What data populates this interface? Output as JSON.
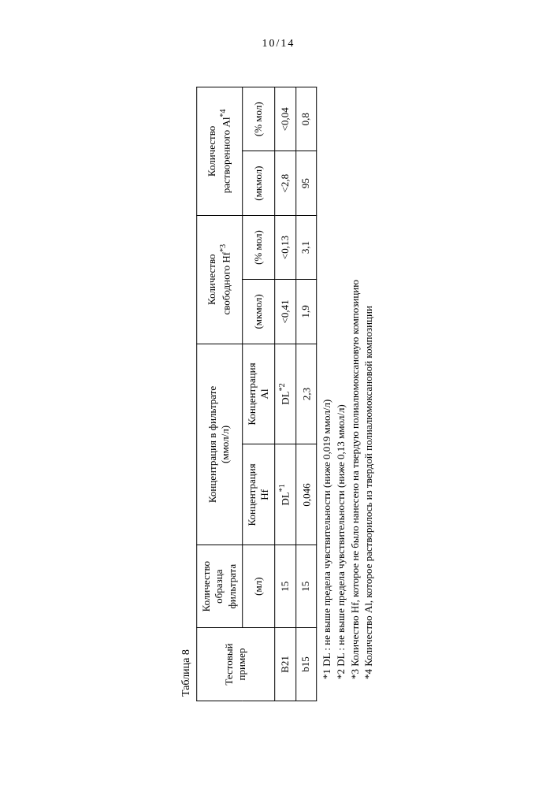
{
  "pagenum": "10/14",
  "table": {
    "caption": "Таблица 8",
    "columns": {
      "c1": "Тестовый пример",
      "c2_l1": "Количество",
      "c2_l2": "образца",
      "c2_l3": "фильтрата",
      "c2_unit": "(мл)",
      "c3_l1": "Концентрация в фильтрате",
      "c3_unit": "(ммол/л)",
      "c3a_l1": "Концентрация",
      "c3a_l2": "Hf",
      "c3b_l1": "Концентрация",
      "c3b_l2": "Al",
      "c4_l1": "Количество",
      "c4_l2": "свободного Hf",
      "c4_sup": "*3",
      "c4a": "(мкмол)",
      "c4b": "(% мол)",
      "c5_l1": "Количество",
      "c5_l2": "растворенного Al",
      "c5_sup": "*4",
      "c5a": "(мкмол)",
      "c5b": "(% мол)"
    },
    "rows": [
      {
        "name": "B21",
        "filtrate_ml": "15",
        "hf_conc": "DL",
        "hf_sup": "*1",
        "al_conc": "DL",
        "al_sup": "*2",
        "hf_umol": "<0,41",
        "hf_molpct": "<0,13",
        "al_umol": "<2,8",
        "al_molpct": "<0,04"
      },
      {
        "name": "b15",
        "filtrate_ml": "15",
        "hf_conc": "0,046",
        "hf_sup": "",
        "al_conc": "2,3",
        "al_sup": "",
        "hf_umol": "1,9",
        "hf_molpct": "3,1",
        "al_umol": "95",
        "al_molpct": "0,8"
      }
    ]
  },
  "footnotes": {
    "f1": "*1  DL :  не выше предела чувствительности (ниже 0,019 ммол/л)",
    "f2": "*2  DL :  не выше предела чувствительности (ниже 0,13 ммол/л)",
    "f3": "*3  Количество Hf, которое не было нанесено на твердую полиалюмоксановую композицию",
    "f4": "*4  Количество Al, которое растворилось из твердой полиалюмоксановой композиции"
  },
  "colwidths": [
    "80",
    "90",
    "110",
    "110",
    "70",
    "70",
    "70",
    "70"
  ]
}
